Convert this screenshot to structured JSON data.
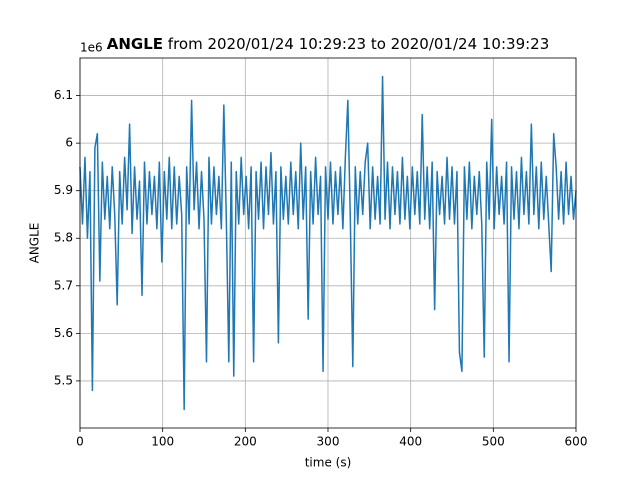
{
  "chart_data": {
    "type": "line",
    "title_bold": "ANGLE",
    "title": "from 2020/01/24 10:29:23 to 2020/01/24 10:39:23",
    "y_offset_label": "1e6",
    "x_label": "time (s)",
    "y_label": "ANGLE",
    "color": "#1f77b4",
    "grid": true,
    "xlim": [
      0,
      600
    ],
    "xticks": [
      0,
      100,
      200,
      300,
      400,
      500,
      600
    ],
    "ylim": [
      5.401,
      6.179
    ],
    "yticks": [
      5.5,
      5.6,
      5.7,
      5.8,
      5.9,
      6.0,
      6.1
    ],
    "x": [
      0,
      3,
      6,
      9,
      12,
      15,
      18,
      21,
      24,
      27,
      30,
      33,
      36,
      39,
      42,
      45,
      48,
      51,
      54,
      57,
      60,
      63,
      66,
      69,
      72,
      75,
      78,
      81,
      84,
      87,
      90,
      93,
      96,
      99,
      102,
      105,
      108,
      111,
      114,
      117,
      120,
      123,
      126,
      129,
      132,
      135,
      138,
      141,
      144,
      147,
      150,
      153,
      156,
      159,
      162,
      165,
      168,
      171,
      174,
      177,
      180,
      183,
      186,
      189,
      192,
      195,
      198,
      201,
      204,
      207,
      210,
      213,
      216,
      219,
      222,
      225,
      228,
      231,
      234,
      237,
      240,
      243,
      246,
      249,
      252,
      255,
      258,
      261,
      264,
      267,
      270,
      273,
      276,
      279,
      282,
      285,
      288,
      291,
      294,
      297,
      300,
      303,
      306,
      309,
      312,
      315,
      318,
      321,
      324,
      327,
      330,
      333,
      336,
      339,
      342,
      345,
      348,
      351,
      354,
      357,
      360,
      363,
      366,
      369,
      372,
      375,
      378,
      381,
      384,
      387,
      390,
      393,
      396,
      399,
      402,
      405,
      408,
      411,
      414,
      417,
      420,
      423,
      426,
      429,
      432,
      435,
      438,
      441,
      444,
      447,
      450,
      453,
      456,
      459,
      462,
      465,
      468,
      471,
      474,
      477,
      480,
      483,
      486,
      489,
      492,
      495,
      498,
      501,
      504,
      507,
      510,
      513,
      516,
      519,
      522,
      525,
      528,
      531,
      534,
      537,
      540,
      543,
      546,
      549,
      552,
      555,
      558,
      561,
      564,
      567,
      570,
      573,
      576,
      579,
      582,
      585,
      588,
      591,
      594,
      597,
      600
    ],
    "series": [
      {
        "name": "ANGLE",
        "color": "#1f77b4",
        "values": [
          5.95,
          5.83,
          5.97,
          5.8,
          5.94,
          5.48,
          5.99,
          6.02,
          5.71,
          5.96,
          5.84,
          5.93,
          5.82,
          5.95,
          5.85,
          5.66,
          5.94,
          5.83,
          5.97,
          5.86,
          6.04,
          5.81,
          5.95,
          5.84,
          5.92,
          5.68,
          5.96,
          5.83,
          5.94,
          5.85,
          5.93,
          5.82,
          5.96,
          5.75,
          5.94,
          5.84,
          5.97,
          5.82,
          5.95,
          5.83,
          5.93,
          5.85,
          5.44,
          5.95,
          5.83,
          6.09,
          5.86,
          5.96,
          5.82,
          5.94,
          5.84,
          5.54,
          5.97,
          5.83,
          5.95,
          5.85,
          5.93,
          5.82,
          6.08,
          5.84,
          5.54,
          5.96,
          5.51,
          5.94,
          5.83,
          5.97,
          5.85,
          5.93,
          5.82,
          5.95,
          5.54,
          5.94,
          5.84,
          5.96,
          5.82,
          5.95,
          5.85,
          5.98,
          5.83,
          5.94,
          5.58,
          5.95,
          5.84,
          5.93,
          5.83,
          5.96,
          5.85,
          5.94,
          5.82,
          6.0,
          5.84,
          5.95,
          5.63,
          5.94,
          5.83,
          5.97,
          5.85,
          5.93,
          5.52,
          5.95,
          5.84,
          5.96,
          5.83,
          5.94,
          5.85,
          5.95,
          5.82,
          5.97,
          6.09,
          5.84,
          5.53,
          5.95,
          5.83,
          5.94,
          5.85,
          5.96,
          6.0,
          5.82,
          5.95,
          5.84,
          5.93,
          5.83,
          6.14,
          5.84,
          5.96,
          5.82,
          5.95,
          5.85,
          5.94,
          5.83,
          5.97,
          5.84,
          5.93,
          5.82,
          5.95,
          5.85,
          5.94,
          5.83,
          6.06,
          5.84,
          5.95,
          5.82,
          5.96,
          5.65,
          5.94,
          5.85,
          5.93,
          5.83,
          5.97,
          5.84,
          5.95,
          5.83,
          5.94,
          5.56,
          5.52,
          5.95,
          5.84,
          5.96,
          5.82,
          5.93,
          5.85,
          5.94,
          5.83,
          5.55,
          5.96,
          5.84,
          6.05,
          5.82,
          5.95,
          5.85,
          5.93,
          5.83,
          5.96,
          5.54,
          5.95,
          5.84,
          5.94,
          5.82,
          5.97,
          5.85,
          5.94,
          5.83,
          6.04,
          5.85,
          5.95,
          5.82,
          5.96,
          5.84,
          5.93,
          5.83,
          5.73,
          6.02,
          5.95,
          5.84,
          5.94,
          5.83,
          5.96,
          5.85,
          5.93,
          5.84,
          5.9
        ]
      }
    ]
  }
}
